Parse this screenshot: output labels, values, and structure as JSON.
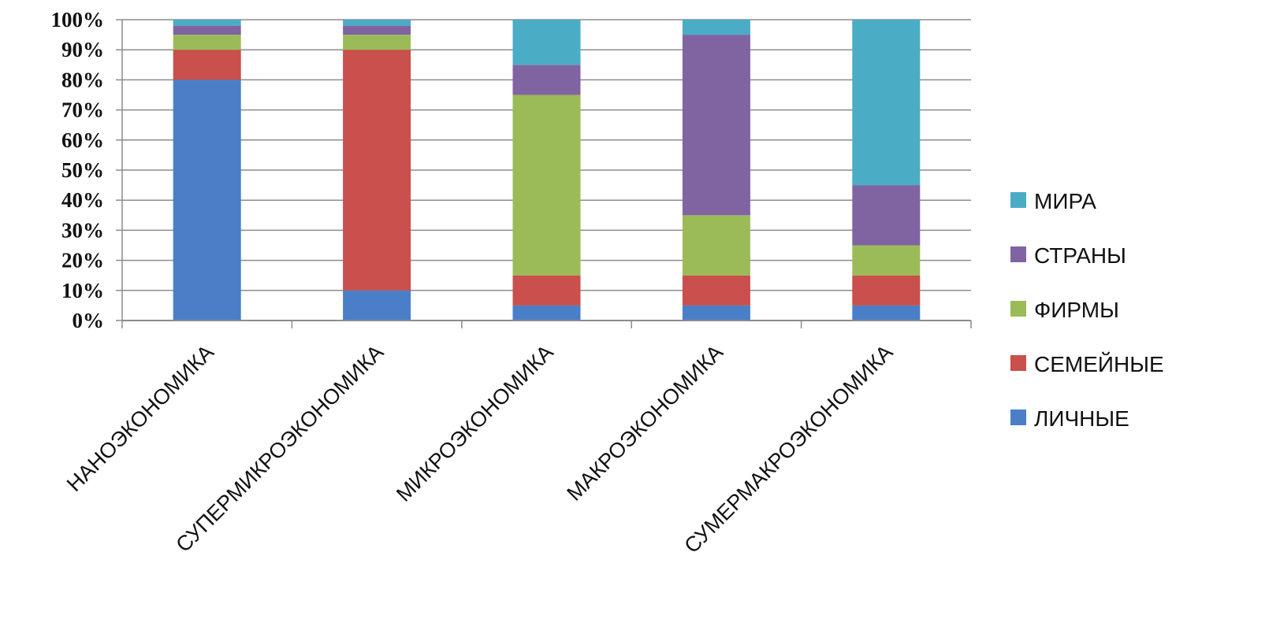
{
  "chart_data": {
    "type": "bar",
    "stacked": true,
    "percent_stacked": true,
    "title": "",
    "xlabel": "",
    "ylabel": "",
    "ylim": [
      0,
      100
    ],
    "y_ticks": [
      "0%",
      "10%",
      "20%",
      "30%",
      "40%",
      "50%",
      "60%",
      "70%",
      "80%",
      "90%",
      "100%"
    ],
    "grid": true,
    "legend_position": "right",
    "categories": [
      "НАНОЭКОНОМИКА",
      "СУПЕРМИКРОЭКОНОМИКА",
      "МИКРОЭКОНОМИКА",
      "МАКРОЭКОНОМИКА",
      "СУМЕРМАКРОЭКОНОМИКА"
    ],
    "series": [
      {
        "name": "ЛИЧНЫЕ",
        "color": "#4a7fc8",
        "values": [
          80,
          10,
          5,
          5,
          5
        ]
      },
      {
        "name": "СЕМЕЙНЫЕ",
        "color": "#c9504c",
        "values": [
          10,
          80,
          10,
          10,
          10
        ]
      },
      {
        "name": "ФИРМЫ",
        "color": "#9bbb59",
        "values": [
          5,
          5,
          60,
          20,
          10
        ]
      },
      {
        "name": "СТРАНЫ",
        "color": "#8064a2",
        "values": [
          3,
          3,
          10,
          60,
          20
        ]
      },
      {
        "name": "МИРА",
        "color": "#4bacc6",
        "values": [
          2,
          2,
          15,
          5,
          55
        ]
      }
    ],
    "legend_order": [
      "МИРА",
      "СТРАНЫ",
      "ФИРМЫ",
      "СЕМЕЙНЫЕ",
      "ЛИЧНЫЕ"
    ]
  }
}
